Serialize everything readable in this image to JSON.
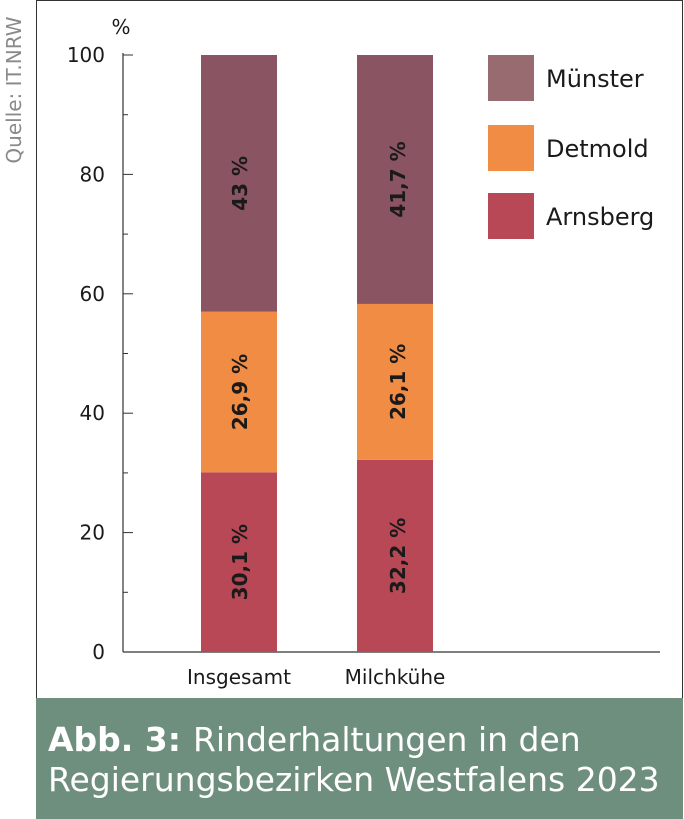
{
  "source": "Quelle: IT.NRW",
  "caption": {
    "label": "Abb. 3:",
    "title_line1": "Rinderhaltungen in den",
    "title_line2": "Regierungsbezirken Westfalens 2023"
  },
  "colors": {
    "muenster": "#8a5462",
    "detmold": "#f18c44",
    "arnsberg": "#b84856",
    "legend_muenster": "#986b70",
    "caption_bg": "#6f8f7e"
  },
  "chart_data": {
    "type": "bar",
    "stacked": true,
    "ylabel": "%",
    "ylim": [
      0,
      100
    ],
    "yticks": [
      0,
      20,
      40,
      60,
      80,
      100
    ],
    "categories": [
      "Insgesamt",
      "Milchkühe"
    ],
    "series": [
      {
        "name": "Arnsberg",
        "values": [
          30.1,
          32.2
        ],
        "labels": [
          "30,1 %",
          "32,2 %"
        ],
        "color": "#b84856"
      },
      {
        "name": "Detmold",
        "values": [
          26.9,
          26.1
        ],
        "labels": [
          "26,9 %",
          "26,1 %"
        ],
        "color": "#f18c44"
      },
      {
        "name": "Münster",
        "values": [
          43.0,
          41.7
        ],
        "labels": [
          "43 %",
          "41,7 %"
        ],
        "color": "#8a5462"
      }
    ],
    "legend": {
      "placement": "top-right",
      "order": [
        "Münster",
        "Detmold",
        "Arnsberg"
      ],
      "swatch_colors": [
        "#986b70",
        "#f18c44",
        "#b84856"
      ]
    },
    "grid": false
  }
}
